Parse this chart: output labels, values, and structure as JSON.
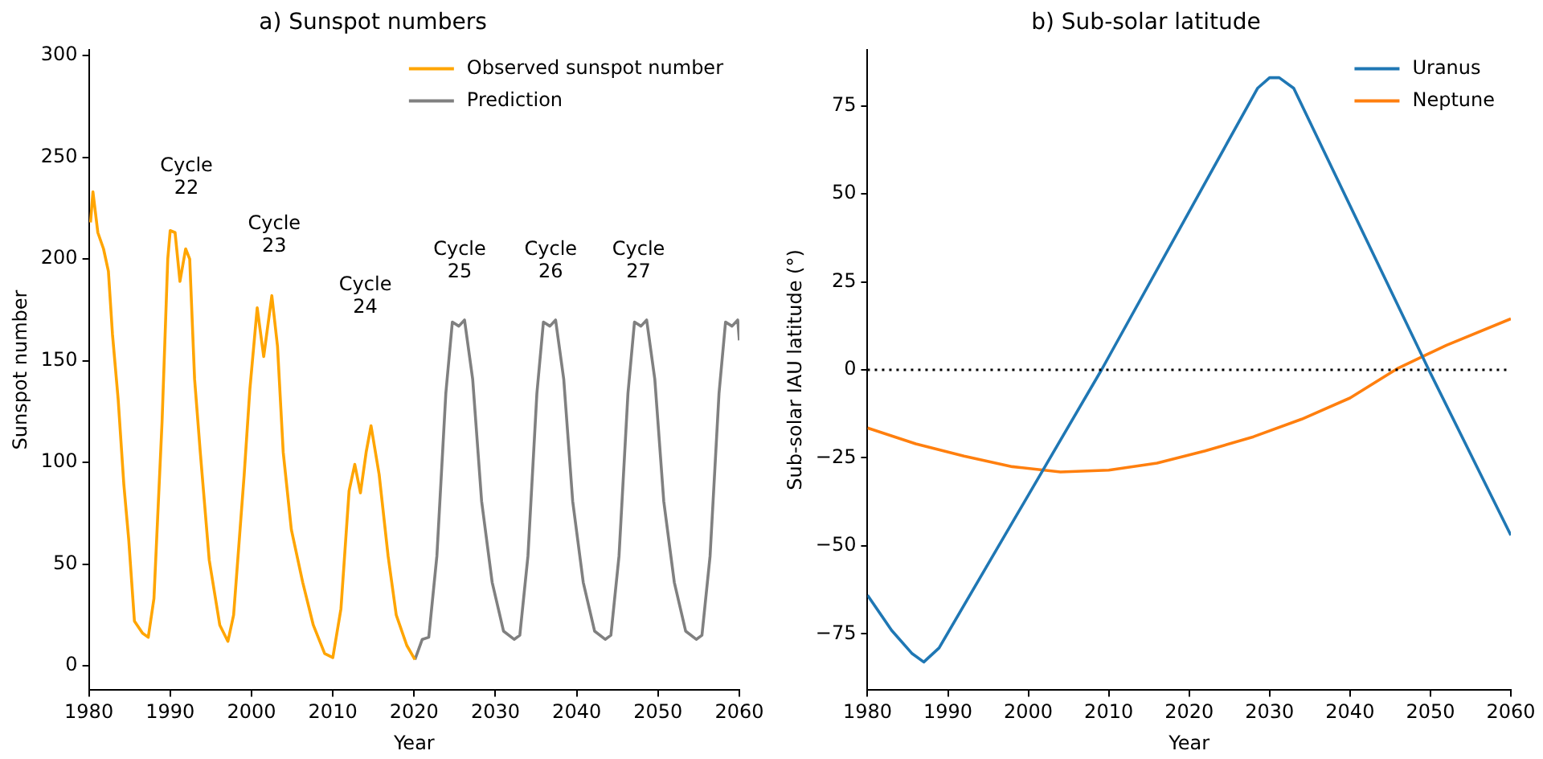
{
  "chart_data": [
    {
      "type": "line",
      "title": "a) Sunspot numbers",
      "xlabel": "Year",
      "ylabel": "Sunspot number",
      "xlim": [
        1980,
        2060
      ],
      "xticks": [
        1980,
        1990,
        2000,
        2010,
        2020,
        2030,
        2040,
        2050,
        2060
      ],
      "ylim": [
        -12,
        303
      ],
      "yticks": [
        0,
        50,
        100,
        150,
        200,
        250,
        300
      ],
      "grid": false,
      "legend": "top right",
      "marker": "none",
      "line_style": "solid",
      "series": [
        {
          "name": "Observed sunspot number",
          "color": "#ffa500",
          "x": [
            1980.2,
            1980.5,
            1981.1,
            1981.8,
            1982.4,
            1982.9,
            1983.6,
            1984.3,
            1984.9,
            1985.6,
            1986.6,
            1987.3,
            1988,
            1989,
            1989.7,
            1990,
            1990.6,
            1991.2,
            1991.9,
            1992.4,
            1993,
            1993.7,
            1994.8,
            1996.1,
            1997.1,
            1997.8,
            1999.1,
            1999.8,
            2000.7,
            2001.5,
            2002.5,
            2003.2,
            2003.9,
            2004.9,
            2006.3,
            2007.6,
            2009,
            2010,
            2011,
            2012,
            2012.7,
            2013.4,
            2014.1,
            2014.7,
            2015.7,
            2016.8,
            2017.8,
            2019.1,
            2020.1
          ],
          "values": [
            218,
            233,
            213,
            205,
            194,
            163,
            131,
            89,
            62,
            22,
            16,
            14,
            33,
            120,
            200,
            214,
            213,
            189,
            205,
            200,
            141,
            105,
            52,
            20,
            12,
            25,
            94,
            136,
            176,
            152,
            182,
            157,
            105,
            67,
            41,
            20,
            6,
            4,
            28,
            86,
            99,
            85,
            105,
            118,
            94,
            54,
            25,
            10,
            3
          ]
        },
        {
          "name": "Prediction",
          "color": "#808080",
          "x": [
            2020.1,
            2021,
            2021.8,
            2022.8,
            2023.9,
            2024.7,
            2025.5,
            2026.2,
            2027.2,
            2028.3,
            2029.6,
            2031,
            2032.3,
            2033,
            2034,
            2035.1,
            2035.9,
            2036.7,
            2037.4,
            2038.4,
            2039.5,
            2040.8,
            2042.2,
            2043.5,
            2044.2,
            2045.2,
            2046.3,
            2047.1,
            2047.9,
            2048.6,
            2049.6,
            2050.7,
            2052,
            2053.4,
            2054.7,
            2055.4,
            2056.4,
            2057.5,
            2058.3,
            2059.1,
            2059.8,
            2060
          ],
          "values": [
            3,
            13,
            14,
            54,
            134,
            169,
            167,
            170,
            141,
            81,
            41,
            17,
            13,
            15,
            54,
            134,
            169,
            167,
            170,
            141,
            81,
            41,
            17,
            13,
            15,
            54,
            134,
            169,
            167,
            170,
            141,
            81,
            41,
            17,
            13,
            15,
            54,
            134,
            169,
            167,
            170,
            160
          ]
        }
      ],
      "annotations": [
        "Cycle\n22",
        "Cycle\n23",
        "Cycle\n24",
        "Cycle\n25",
        "Cycle\n26",
        "Cycle\n27"
      ]
    },
    {
      "type": "line",
      "title": "b) Sub-solar latitude",
      "xlabel": "Year",
      "ylabel": "Sub-solar IAU latitude (°)",
      "xlim": [
        1980,
        2060
      ],
      "xticks": [
        1980,
        1990,
        2000,
        2010,
        2020,
        2030,
        2040,
        2050,
        2060
      ],
      "ylim": [
        -91,
        91
      ],
      "yticks": [
        {
          "value": -75,
          "label": "−75"
        },
        {
          "value": -50,
          "label": "−50"
        },
        {
          "value": -25,
          "label": "−25"
        },
        0,
        25,
        50,
        75
      ],
      "grid": false,
      "legend": "top right",
      "marker": "none",
      "line_style": "solid",
      "series": [
        {
          "name": "Uranus",
          "color": "#1f77b4",
          "x": [
            1980,
            1983,
            1985.5,
            1987,
            1988.9,
            2009.1,
            2028.5,
            2030,
            2031.2,
            2033,
            2049.8,
            2060
          ],
          "values": [
            -64,
            -74,
            -80.5,
            -83,
            -79,
            0,
            80,
            83,
            83,
            80,
            0,
            -47
          ]
        },
        {
          "name": "Neptune",
          "color": "#ff7f0e",
          "x": [
            1980,
            1986,
            1992,
            1998,
            2004,
            2010,
            2016,
            2022,
            2028,
            2034,
            2040,
            2046,
            2052,
            2060
          ],
          "values": [
            -16.5,
            -21,
            -24.5,
            -27.5,
            -29,
            -28.5,
            -26.5,
            -23,
            -19,
            -14,
            -8,
            0.5,
            7,
            14.5
          ]
        }
      ],
      "ref_lines": [
        {
          "axis": "y",
          "value": 0,
          "color": "#000000",
          "line_style": "dotted"
        }
      ]
    }
  ]
}
